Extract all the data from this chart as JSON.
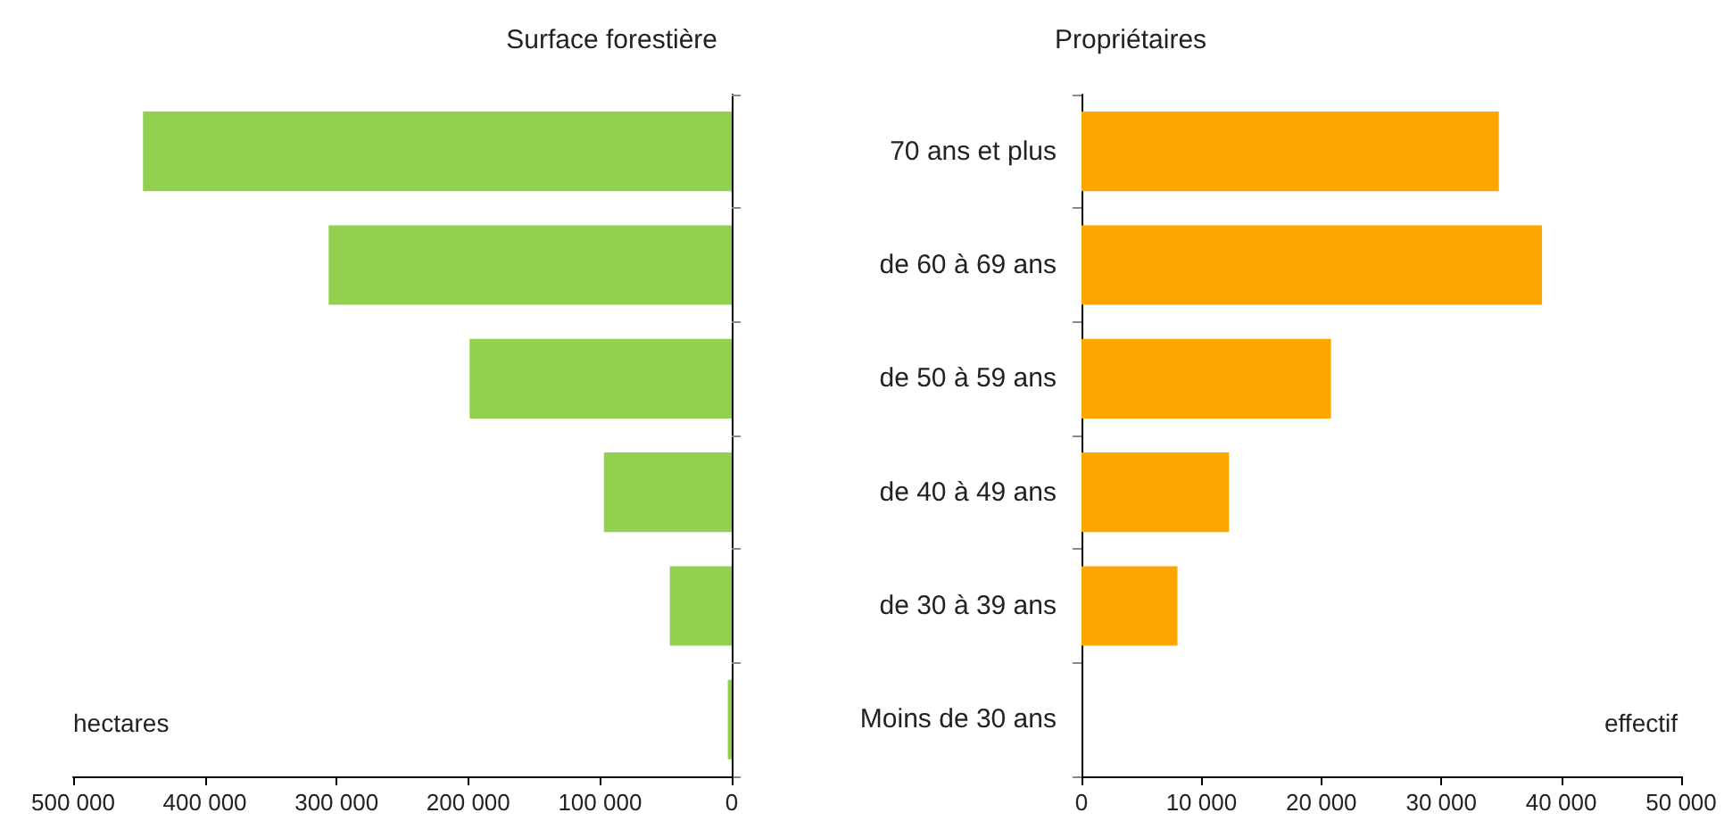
{
  "chart_data": [
    {
      "type": "bar",
      "orientation": "horizontal",
      "title": "Surface forestière",
      "categories": [
        null,
        null,
        null,
        null,
        null,
        null
      ],
      "values": [
        447000,
        306000,
        199000,
        97000,
        47000,
        3000
      ],
      "color": "#92d050",
      "xlim": [
        500000,
        0
      ],
      "xticks": [
        {
          "value": 500000,
          "label": "500 000"
        },
        {
          "value": 400000,
          "label": "400 000"
        },
        {
          "value": 300000,
          "label": "300 000"
        },
        {
          "value": 200000,
          "label": "200 000"
        },
        {
          "value": 100000,
          "label": "100 000"
        },
        0
      ],
      "tick_labels": "x",
      "annotations": [
        "hectares"
      ]
    },
    {
      "type": "bar",
      "orientation": "horizontal",
      "title": "Propriétaires",
      "categories": [
        "70 ans et plus",
        "de 60 à 69 ans",
        "de 50 à 59 ans",
        "de 40 à 49 ans",
        "de 30 à 39 ans",
        "Moins de 30 ans"
      ],
      "values": [
        34800,
        38400,
        20800,
        12300,
        8000,
        0
      ],
      "color": "#ffa500",
      "xlim": [
        0,
        50000
      ],
      "xticks": [
        0,
        {
          "value": 10000,
          "label": "10 000"
        },
        {
          "value": 20000,
          "label": "20 000"
        },
        {
          "value": 30000,
          "label": "30 000"
        },
        {
          "value": 40000,
          "label": "40 000"
        },
        {
          "value": 50000,
          "label": "50 000"
        }
      ],
      "annotations": [
        "effectif"
      ]
    }
  ]
}
